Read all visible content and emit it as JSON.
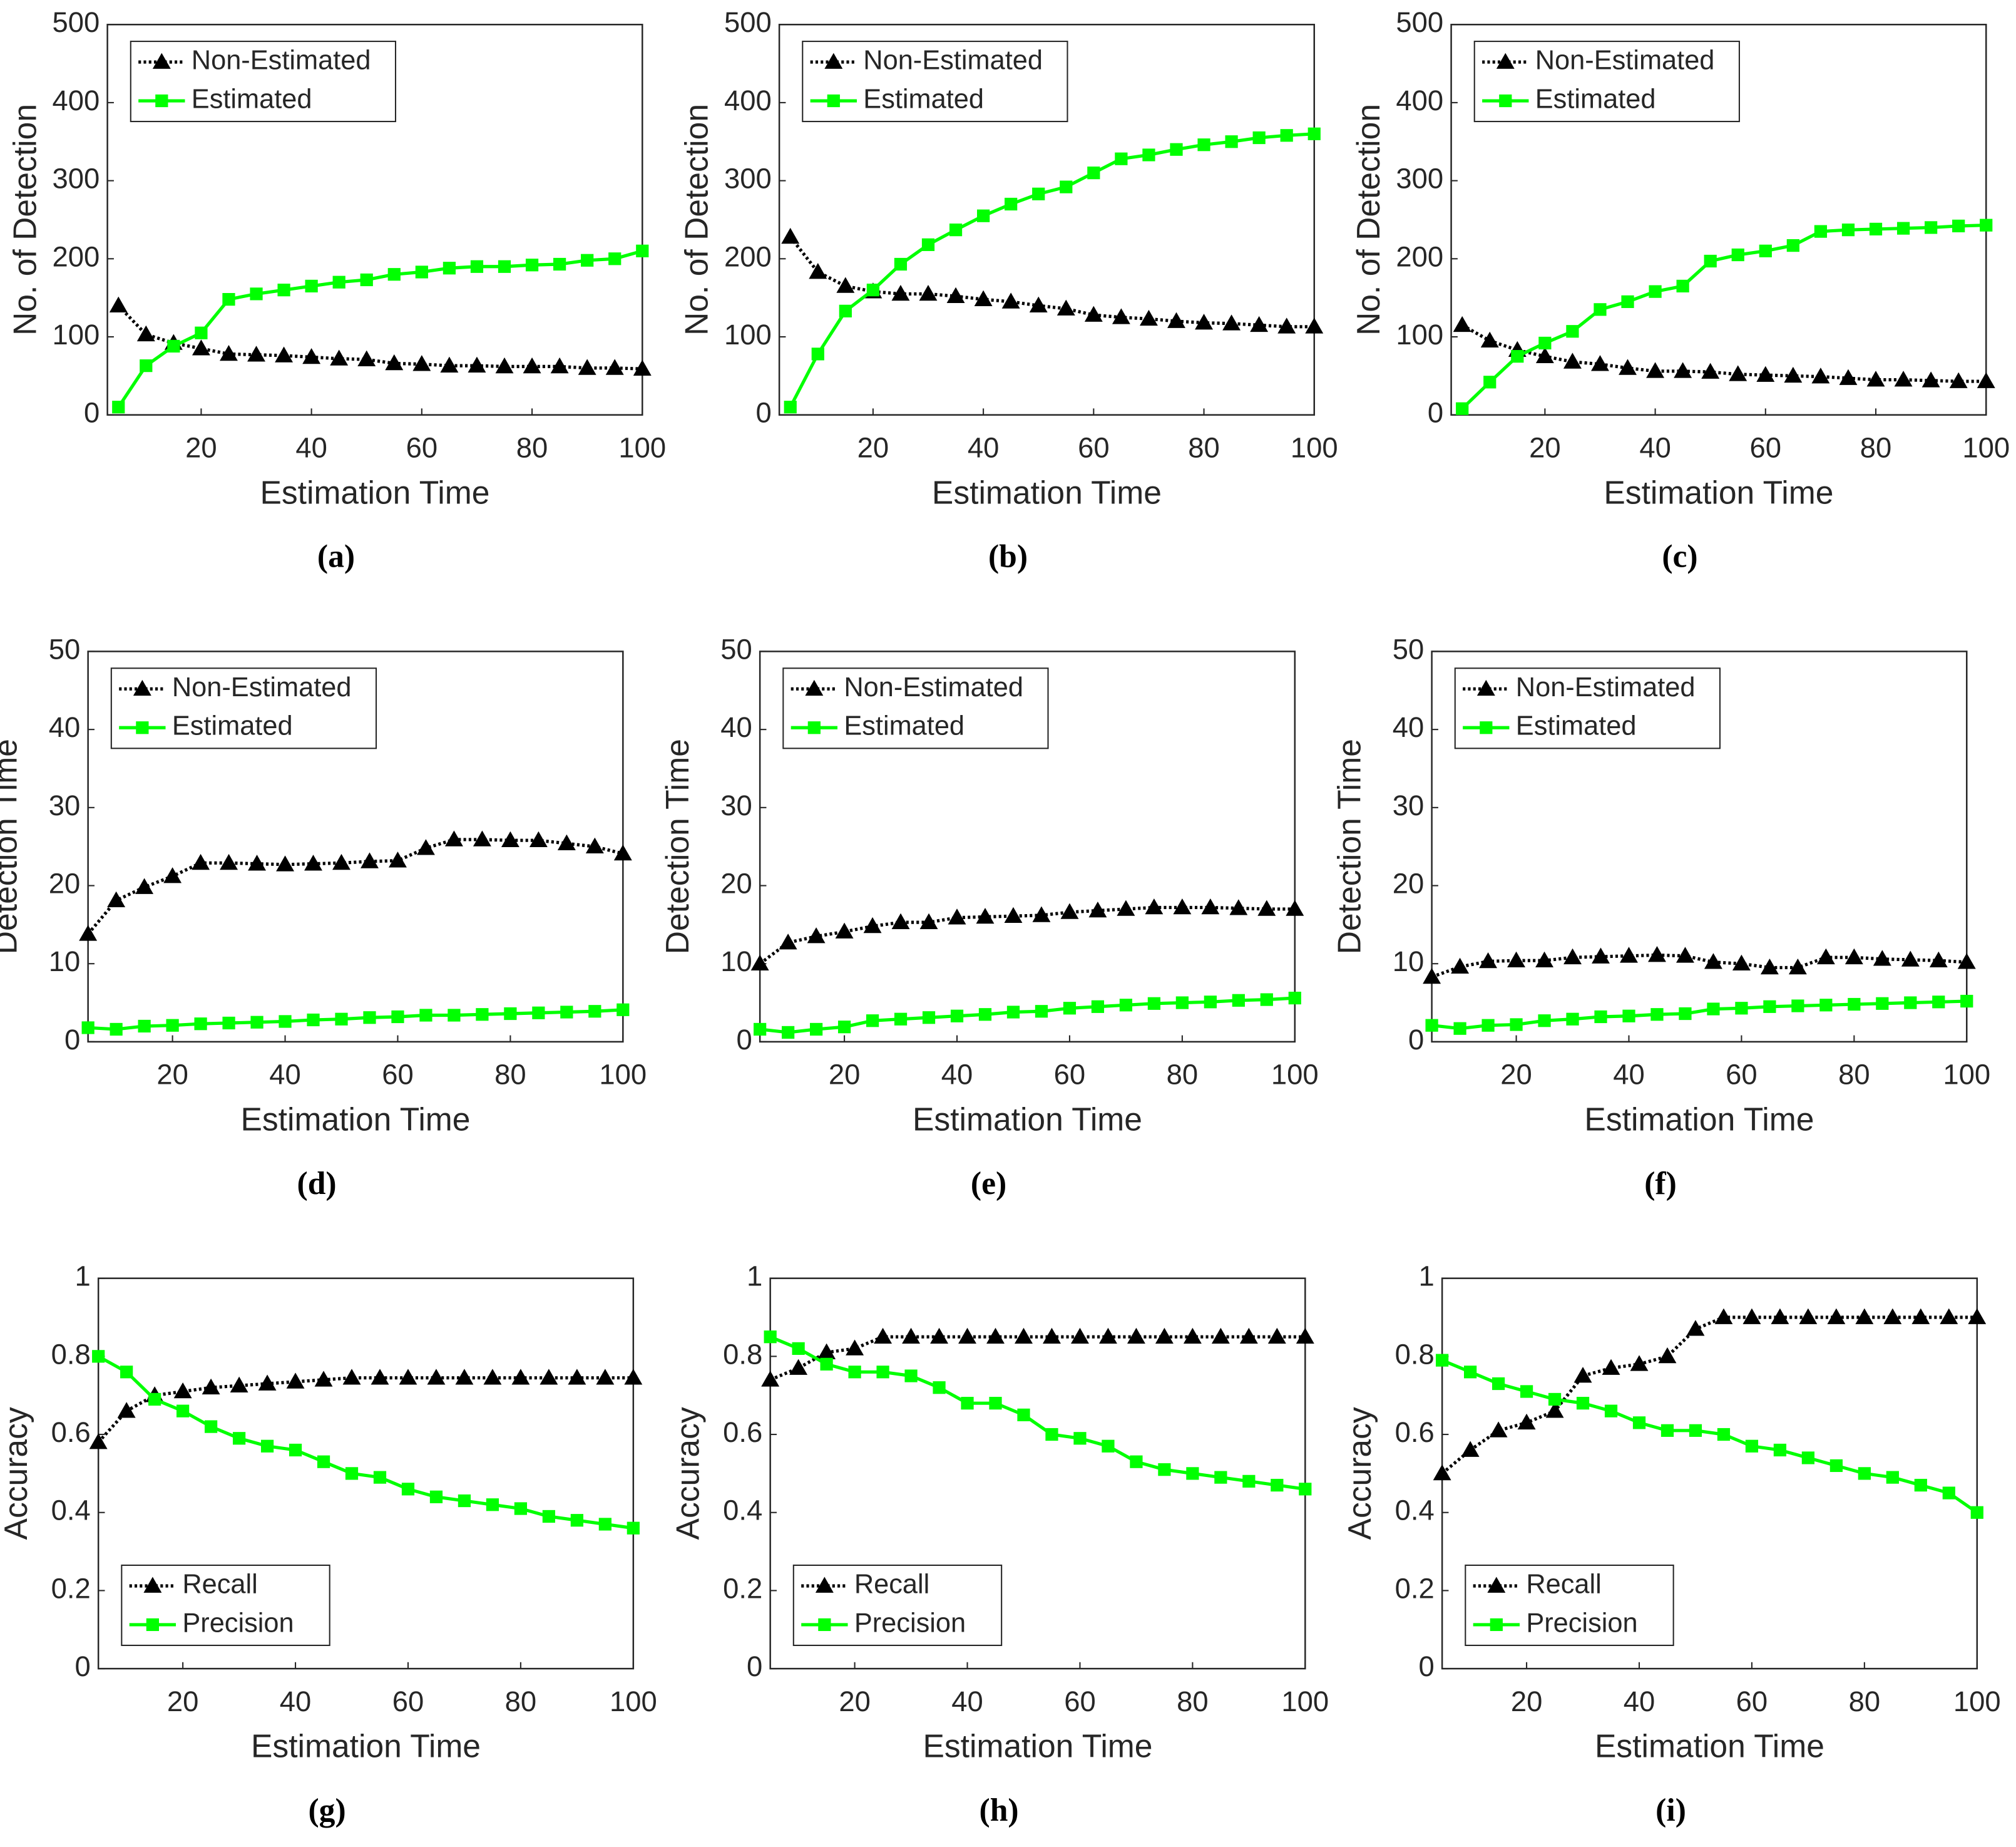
{
  "chart_data": [
    {
      "type": "line",
      "caption": "(a)",
      "xlabel": "Estimation Time",
      "ylabel": "No. of Detection",
      "legend": "upper-left",
      "x": [
        5,
        10,
        15,
        20,
        25,
        30,
        35,
        40,
        45,
        50,
        55,
        60,
        65,
        70,
        75,
        80,
        85,
        90,
        95,
        100
      ],
      "xlim": [
        3,
        100
      ],
      "xticks": [
        20,
        40,
        60,
        80,
        100
      ],
      "ylim": [
        0,
        500
      ],
      "yticks": [
        0,
        100,
        200,
        300,
        400,
        500
      ],
      "series": [
        {
          "name": "Non-Estimated",
          "color": "#000000",
          "marker": "triangle",
          "values": [
            140,
            103,
            92,
            85,
            78,
            77,
            76,
            74,
            72,
            71,
            66,
            65,
            63,
            63,
            62,
            62,
            62,
            60,
            60,
            59
          ]
        },
        {
          "name": "Estimated",
          "color": "#00ff00",
          "marker": "square",
          "values": [
            10,
            63,
            88,
            105,
            148,
            155,
            160,
            165,
            170,
            173,
            180,
            183,
            188,
            190,
            190,
            192,
            193,
            198,
            200,
            210
          ]
        }
      ]
    },
    {
      "type": "line",
      "caption": "(b)",
      "xlabel": "Estimation Time",
      "ylabel": "No. of Detection",
      "legend": "upper-left",
      "x": [
        5,
        10,
        15,
        20,
        25,
        30,
        35,
        40,
        45,
        50,
        55,
        60,
        65,
        70,
        75,
        80,
        85,
        90,
        95,
        100
      ],
      "xlim": [
        3,
        100
      ],
      "xticks": [
        20,
        40,
        60,
        80,
        100
      ],
      "ylim": [
        0,
        500
      ],
      "yticks": [
        0,
        100,
        200,
        300,
        400,
        500
      ],
      "series": [
        {
          "name": "Non-Estimated",
          "color": "#000000",
          "marker": "triangle",
          "values": [
            228,
            183,
            165,
            158,
            155,
            155,
            152,
            148,
            145,
            140,
            136,
            128,
            125,
            123,
            120,
            118,
            117,
            115,
            113,
            113
          ]
        },
        {
          "name": "Estimated",
          "color": "#00ff00",
          "marker": "square",
          "values": [
            10,
            78,
            133,
            160,
            193,
            218,
            237,
            255,
            270,
            283,
            292,
            310,
            328,
            333,
            340,
            346,
            350,
            355,
            358,
            360
          ]
        }
      ]
    },
    {
      "type": "line",
      "caption": "(c)",
      "xlabel": "Estimation Time",
      "ylabel": "No. of Detection",
      "legend": "upper-left",
      "x": [
        5,
        10,
        15,
        20,
        25,
        30,
        35,
        40,
        45,
        50,
        55,
        60,
        65,
        70,
        75,
        80,
        85,
        90,
        95,
        100
      ],
      "xlim": [
        3,
        100
      ],
      "xticks": [
        20,
        40,
        60,
        80,
        100
      ],
      "ylim": [
        0,
        500
      ],
      "yticks": [
        0,
        100,
        200,
        300,
        400,
        500
      ],
      "series": [
        {
          "name": "Non-Estimated",
          "color": "#000000",
          "marker": "triangle",
          "values": [
            115,
            95,
            83,
            75,
            68,
            65,
            60,
            56,
            56,
            55,
            52,
            51,
            50,
            49,
            47,
            45,
            45,
            44,
            43,
            43
          ]
        },
        {
          "name": "Estimated",
          "color": "#00ff00",
          "marker": "square",
          "values": [
            8,
            42,
            75,
            92,
            107,
            135,
            145,
            158,
            165,
            197,
            205,
            210,
            217,
            235,
            237,
            238,
            239,
            240,
            242,
            243
          ]
        }
      ]
    },
    {
      "type": "line",
      "caption": "(d)",
      "xlabel": "Estimation Time",
      "ylabel": "Detection Time",
      "legend": "upper-left",
      "x": [
        5,
        10,
        15,
        20,
        25,
        30,
        35,
        40,
        45,
        50,
        55,
        60,
        65,
        70,
        75,
        80,
        85,
        90,
        95,
        100
      ],
      "xlim": [
        5,
        100
      ],
      "xticks": [
        20,
        40,
        60,
        80,
        100
      ],
      "ylim": [
        0,
        50
      ],
      "yticks": [
        0,
        10,
        20,
        30,
        40,
        50
      ],
      "series": [
        {
          "name": "Non-Estimated",
          "color": "#000000",
          "marker": "triangle",
          "values": [
            13.8,
            18.1,
            19.8,
            21.2,
            22.9,
            22.9,
            22.8,
            22.7,
            22.8,
            22.9,
            23.1,
            23.2,
            24.8,
            25.9,
            25.9,
            25.8,
            25.8,
            25.4,
            25,
            24.1
          ]
        },
        {
          "name": "Estimated",
          "color": "#00ff00",
          "marker": "square",
          "values": [
            1.8,
            1.6,
            2,
            2.1,
            2.3,
            2.4,
            2.5,
            2.6,
            2.8,
            2.9,
            3.1,
            3.2,
            3.4,
            3.4,
            3.5,
            3.6,
            3.7,
            3.8,
            3.9,
            4.1
          ]
        }
      ]
    },
    {
      "type": "line",
      "caption": "(e)",
      "xlabel": "Estimation Time",
      "ylabel": "Detection Time",
      "legend": "upper-left",
      "x": [
        5,
        10,
        15,
        20,
        25,
        30,
        35,
        40,
        45,
        50,
        55,
        60,
        65,
        70,
        75,
        80,
        85,
        90,
        95,
        100
      ],
      "xlim": [
        5,
        100
      ],
      "xticks": [
        20,
        40,
        60,
        80,
        100
      ],
      "ylim": [
        0,
        50
      ],
      "yticks": [
        0,
        10,
        20,
        30,
        40,
        50
      ],
      "series": [
        {
          "name": "Non-Estimated",
          "color": "#000000",
          "marker": "triangle",
          "values": [
            10,
            12.7,
            13.5,
            14.1,
            14.8,
            15.3,
            15.3,
            15.9,
            16,
            16.1,
            16.2,
            16.6,
            16.8,
            17,
            17.2,
            17.2,
            17.2,
            17.1,
            17,
            17
          ]
        },
        {
          "name": "Estimated",
          "color": "#00ff00",
          "marker": "square",
          "values": [
            1.6,
            1.2,
            1.6,
            1.9,
            2.7,
            2.9,
            3.1,
            3.3,
            3.5,
            3.8,
            3.9,
            4.3,
            4.5,
            4.7,
            4.9,
            5,
            5.1,
            5.3,
            5.4,
            5.6
          ]
        }
      ]
    },
    {
      "type": "line",
      "caption": "(f)",
      "xlabel": "Estimation Time",
      "ylabel": "Detection Time",
      "legend": "upper-left",
      "x": [
        5,
        10,
        15,
        20,
        25,
        30,
        35,
        40,
        45,
        50,
        55,
        60,
        65,
        70,
        75,
        80,
        85,
        90,
        95,
        100
      ],
      "xlim": [
        5,
        100
      ],
      "xticks": [
        20,
        40,
        60,
        80,
        100
      ],
      "ylim": [
        0,
        50
      ],
      "yticks": [
        0,
        10,
        20,
        30,
        40,
        50
      ],
      "series": [
        {
          "name": "Non-Estimated",
          "color": "#000000",
          "marker": "triangle",
          "values": [
            8.3,
            9.6,
            10.3,
            10.4,
            10.4,
            10.8,
            10.9,
            11,
            11.1,
            11,
            10.2,
            10,
            9.5,
            9.5,
            10.8,
            10.8,
            10.6,
            10.5,
            10.4,
            10.2
          ]
        },
        {
          "name": "Estimated",
          "color": "#00ff00",
          "marker": "square",
          "values": [
            2.1,
            1.7,
            2.1,
            2.2,
            2.7,
            2.9,
            3.2,
            3.3,
            3.5,
            3.6,
            4.2,
            4.3,
            4.5,
            4.6,
            4.7,
            4.8,
            4.9,
            5,
            5.1,
            5.2
          ]
        }
      ]
    },
    {
      "type": "line",
      "caption": "(g)",
      "xlabel": "Estimation Time",
      "ylabel": "Accuracy",
      "legend": "lower-left",
      "x": [
        5,
        10,
        15,
        20,
        25,
        30,
        35,
        40,
        45,
        50,
        55,
        60,
        65,
        70,
        75,
        80,
        85,
        90,
        95,
        100
      ],
      "xlim": [
        5,
        100
      ],
      "xticks": [
        20,
        40,
        60,
        80,
        100
      ],
      "ylim": [
        0,
        1
      ],
      "yticks": [
        0,
        0.2,
        0.4,
        0.6,
        0.8,
        1
      ],
      "series": [
        {
          "name": "Recall",
          "color": "#000000",
          "marker": "triangle",
          "values": [
            0.58,
            0.66,
            0.7,
            0.71,
            0.72,
            0.725,
            0.73,
            0.735,
            0.74,
            0.745,
            0.745,
            0.745,
            0.745,
            0.745,
            0.745,
            0.745,
            0.745,
            0.745,
            0.745,
            0.745
          ]
        },
        {
          "name": "Precision",
          "color": "#00ff00",
          "marker": "square",
          "values": [
            0.8,
            0.76,
            0.69,
            0.66,
            0.62,
            0.59,
            0.57,
            0.56,
            0.53,
            0.5,
            0.49,
            0.46,
            0.44,
            0.43,
            0.42,
            0.41,
            0.39,
            0.38,
            0.37,
            0.36
          ]
        }
      ]
    },
    {
      "type": "line",
      "caption": "(h)",
      "xlabel": "Estimation Time",
      "ylabel": "Accuracy",
      "legend": "lower-left",
      "x": [
        5,
        10,
        15,
        20,
        25,
        30,
        35,
        40,
        45,
        50,
        55,
        60,
        65,
        70,
        75,
        80,
        85,
        90,
        95,
        100
      ],
      "xlim": [
        5,
        100
      ],
      "xticks": [
        20,
        40,
        60,
        80,
        100
      ],
      "ylim": [
        0,
        1
      ],
      "yticks": [
        0,
        0.2,
        0.4,
        0.6,
        0.8,
        1
      ],
      "series": [
        {
          "name": "Recall",
          "color": "#000000",
          "marker": "triangle",
          "values": [
            0.74,
            0.77,
            0.81,
            0.82,
            0.85,
            0.85,
            0.85,
            0.85,
            0.85,
            0.85,
            0.85,
            0.85,
            0.85,
            0.85,
            0.85,
            0.85,
            0.85,
            0.85,
            0.85,
            0.85
          ]
        },
        {
          "name": "Precision",
          "color": "#00ff00",
          "marker": "square",
          "values": [
            0.85,
            0.82,
            0.78,
            0.76,
            0.76,
            0.75,
            0.72,
            0.68,
            0.68,
            0.65,
            0.6,
            0.59,
            0.57,
            0.53,
            0.51,
            0.5,
            0.49,
            0.48,
            0.47,
            0.46
          ]
        }
      ]
    },
    {
      "type": "line",
      "caption": "(i)",
      "xlabel": "Estimation Time",
      "ylabel": "Accuracy",
      "legend": "lower-left",
      "x": [
        5,
        10,
        15,
        20,
        25,
        30,
        35,
        40,
        45,
        50,
        55,
        60,
        65,
        70,
        75,
        80,
        85,
        90,
        95,
        100
      ],
      "xlim": [
        5,
        100
      ],
      "xticks": [
        20,
        40,
        60,
        80,
        100
      ],
      "ylim": [
        0,
        1
      ],
      "yticks": [
        0,
        0.2,
        0.4,
        0.6,
        0.8,
        1
      ],
      "series": [
        {
          "name": "Recall",
          "color": "#000000",
          "marker": "triangle",
          "values": [
            0.5,
            0.56,
            0.61,
            0.63,
            0.66,
            0.75,
            0.77,
            0.78,
            0.8,
            0.87,
            0.9,
            0.9,
            0.9,
            0.9,
            0.9,
            0.9,
            0.9,
            0.9,
            0.9,
            0.9
          ]
        },
        {
          "name": "Precision",
          "color": "#00ff00",
          "marker": "square",
          "values": [
            0.79,
            0.76,
            0.73,
            0.71,
            0.69,
            0.68,
            0.66,
            0.63,
            0.61,
            0.61,
            0.6,
            0.57,
            0.56,
            0.54,
            0.52,
            0.5,
            0.49,
            0.47,
            0.45,
            0.4
          ]
        }
      ]
    }
  ]
}
